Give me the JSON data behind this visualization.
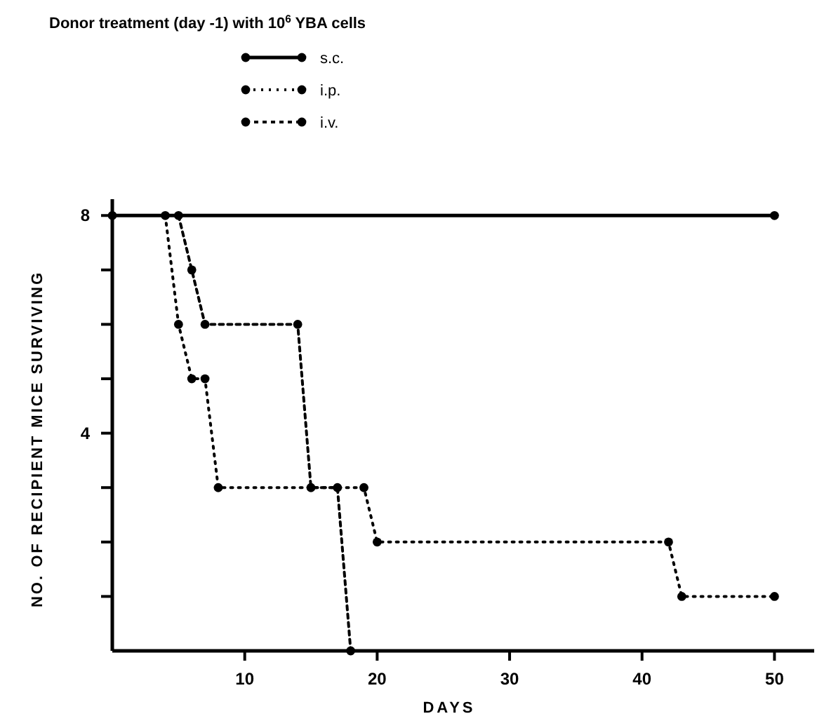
{
  "chart_data": {
    "type": "line",
    "title": "Donor treatment (day -1) with 10$^{6}$ YBA cells",
    "xlabel": "DAYS",
    "ylabel": "NO. OF RECIPIENT MICE SURVIVING",
    "xlim": [
      0,
      53
    ],
    "xticks": [
      10,
      20,
      30,
      40,
      50
    ],
    "ylim": [
      0,
      8.3
    ],
    "yticks": [
      {
        "value": 1,
        "label": null
      },
      {
        "value": 2,
        "label": null
      },
      {
        "value": 3,
        "label": null
      },
      4,
      {
        "value": 5,
        "label": null
      },
      {
        "value": 6,
        "label": null
      },
      {
        "value": 7,
        "label": null
      },
      8
    ],
    "grid": false,
    "legend": "top",
    "marker": "circle",
    "series": [
      {
        "name": "s.c.",
        "color": "#000000",
        "line_style": "solid",
        "x": [
          0,
          50
        ],
        "values": [
          8,
          8
        ]
      },
      {
        "name": "i.p.",
        "color": "#000000",
        "line_style": "dotted",
        "x": [
          4,
          5,
          6,
          7,
          8,
          19,
          20,
          42,
          43,
          50
        ],
        "values": [
          8,
          6,
          5,
          5,
          3,
          3,
          2,
          2,
          1,
          1
        ]
      },
      {
        "name": "i.v.",
        "color": "#000000",
        "line_style": "dashed",
        "x": [
          5,
          6,
          7,
          14,
          15,
          17,
          18
        ],
        "values": [
          8,
          7,
          6,
          6,
          3,
          3,
          0
        ]
      }
    ]
  }
}
